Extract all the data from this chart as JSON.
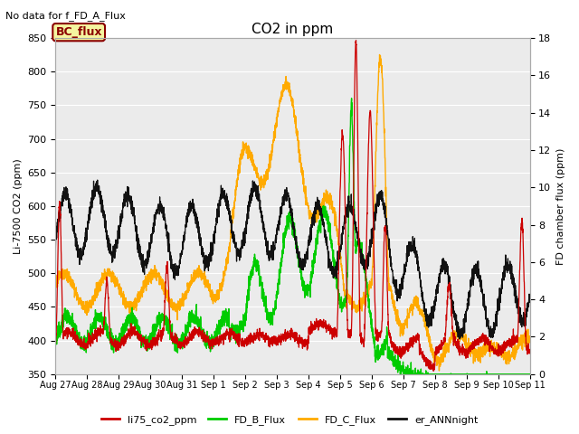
{
  "title": "CO2 in ppm",
  "top_left_text": "No data for f_FD_A_Flux",
  "bc_flux_label": "BC_flux",
  "ylabel_left": "Li-7500 CO2 (ppm)",
  "ylabel_right": "FD chamber flux (ppm)",
  "ylim_left": [
    350,
    850
  ],
  "ylim_right": [
    0,
    18
  ],
  "yticks_left": [
    350,
    400,
    450,
    500,
    550,
    600,
    650,
    700,
    750,
    800,
    850
  ],
  "yticks_right": [
    0,
    2,
    4,
    6,
    8,
    10,
    12,
    14,
    16,
    18
  ],
  "xtick_labels": [
    "Aug 27",
    "Aug 28",
    "Aug 29",
    "Aug 30",
    "Aug 31",
    "Sep 1",
    "Sep 2",
    "Sep 3",
    "Sep 4",
    "Sep 5",
    "Sep 6",
    "Sep 7",
    "Sep 8",
    "Sep 9",
    "Sep 10",
    "Sep 11"
  ],
  "line_colors": {
    "li75": "#cc0000",
    "FD_B": "#00cc00",
    "FD_C": "#ffaa00",
    "er_ANN": "#111111"
  },
  "legend_labels": [
    "li75_co2_ppm",
    "FD_B_Flux",
    "FD_C_Flux",
    "er_ANNnight"
  ],
  "grid_color": "#ffffff",
  "plot_bg": "#ebebeb"
}
